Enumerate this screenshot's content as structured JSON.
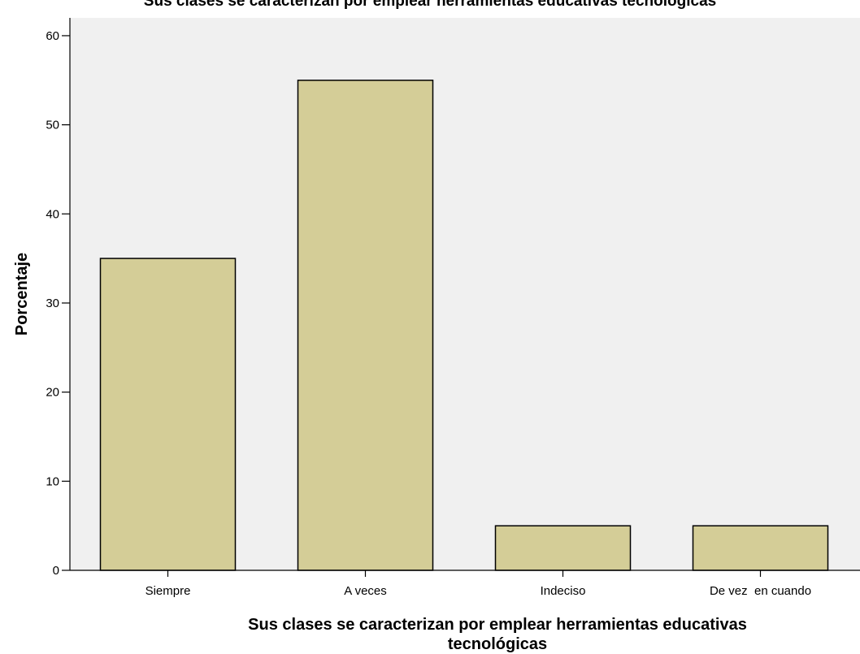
{
  "chart_data": {
    "type": "bar",
    "title": "Sus clases se caracterizan por emplear herramientas educativas tecnológicas",
    "categories": [
      "Siempre",
      "A veces",
      "Indeciso",
      "De vez  en cuando"
    ],
    "values": [
      35,
      55,
      5,
      5
    ],
    "xlabel_lines": [
      "Sus clases se caracterizan por emplear herramientas educativas",
      "tecnológicas"
    ],
    "ylabel": "Porcentaje",
    "ylim": [
      0,
      62
    ],
    "yticks": [
      0,
      10,
      20,
      30,
      40,
      50,
      60
    ],
    "bar_color": "#d4cd97",
    "plot_background": "#f0f0f0",
    "grid": false,
    "legend": "none"
  }
}
